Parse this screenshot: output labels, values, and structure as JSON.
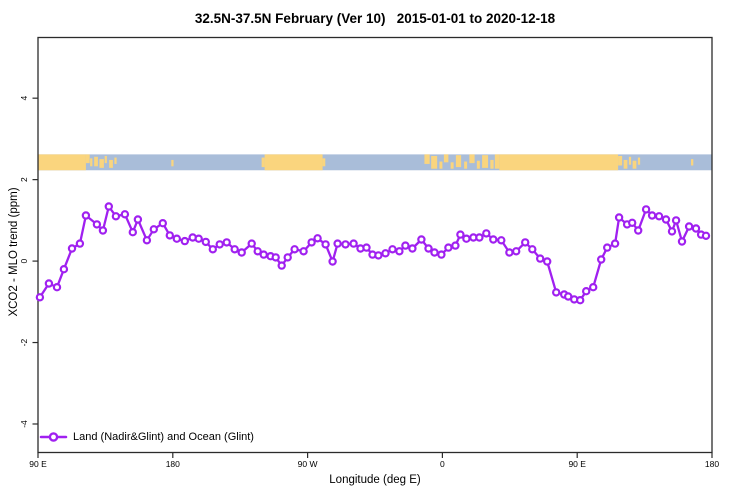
{
  "chart_data": {
    "type": "line",
    "title": "32.5N-37.5N February (Ver 10)   2015-01-01 to 2020-12-18",
    "xlabel": "Longitude (deg E)",
    "ylabel": "XCO2 - MLO trend (ppm)",
    "xlim": [
      90,
      540
    ],
    "ylim": [
      -4.7,
      5.49
    ],
    "grid": false,
    "x_ticks": {
      "values": [
        90,
        180,
        270,
        360,
        450,
        540
      ],
      "labels": [
        "90 E",
        "180",
        "90 W",
        "0",
        "90 E",
        "180"
      ]
    },
    "y_ticks": {
      "values": [
        -4,
        -2,
        0,
        2,
        4
      ],
      "labels": [
        "-4",
        "-2",
        "0",
        "2",
        "4"
      ]
    },
    "legend": {
      "position": "bottom-left",
      "entries": [
        {
          "label": "Land (Nadir&Glint) and Ocean (Glint)",
          "color": "#A020F0",
          "marker": "open-circle"
        }
      ]
    },
    "colors": {
      "series": "#A020F0",
      "marker_fill": "#FFFFFF",
      "land": "#FAD57E",
      "ocean": "#A9BDD9",
      "axis": "#000000"
    },
    "map_strip": {
      "note": "land/ocean band across plot centered near 2.4 ppm",
      "y_top_ppm": 2.62,
      "y_bottom_ppm": 2.23,
      "ocean_span": [
        90,
        540
      ],
      "land_segments": [
        [
          90,
          122
        ],
        [
          241.3,
          280
        ],
        [
          398,
          477.3
        ]
      ],
      "island_specks": [
        [
          122,
          124.5,
          0,
          0.55
        ],
        [
          124.8,
          126.3,
          0.25,
          0.5
        ],
        [
          127.5,
          130,
          0.15,
          0.6
        ],
        [
          131,
          134,
          0.3,
          0.55
        ],
        [
          134.5,
          136,
          0.1,
          0.45
        ],
        [
          137.5,
          140,
          0.35,
          0.5
        ],
        [
          141,
          142.5,
          0.2,
          0.4
        ],
        [
          179,
          180.5,
          0.35,
          0.4
        ],
        [
          239.3,
          241.3,
          0.2,
          0.6
        ],
        [
          280,
          281.8,
          0.25,
          0.5
        ],
        [
          348,
          351.5,
          0,
          0.6
        ],
        [
          352.5,
          356.5,
          0.1,
          0.8
        ],
        [
          358,
          360,
          0.45,
          0.45
        ],
        [
          361,
          364,
          0,
          0.5
        ],
        [
          365.5,
          367.5,
          0.5,
          0.4
        ],
        [
          369,
          372.5,
          0.05,
          0.75
        ],
        [
          374.5,
          376.5,
          0.45,
          0.45
        ],
        [
          378,
          381.5,
          0,
          0.55
        ],
        [
          383,
          385,
          0.4,
          0.5
        ],
        [
          386.5,
          390.5,
          0.05,
          0.8
        ],
        [
          392,
          394.2,
          0.35,
          0.55
        ],
        [
          395,
          398,
          0,
          0.9
        ],
        [
          477.3,
          480,
          0.1,
          0.6
        ],
        [
          481,
          483.5,
          0.35,
          0.55
        ],
        [
          484.5,
          486,
          0.15,
          0.5
        ],
        [
          487,
          489.5,
          0.4,
          0.5
        ],
        [
          490.5,
          492,
          0.2,
          0.45
        ],
        [
          526,
          527.5,
          0.3,
          0.4
        ]
      ]
    },
    "series": [
      {
        "name": "Land (Nadir&Glint) and Ocean (Glint)",
        "points": [
          [
            91.3,
            -0.89
          ],
          [
            97.3,
            -0.55
          ],
          [
            102.7,
            -0.64
          ],
          [
            107.3,
            -0.2
          ],
          [
            112.7,
            0.31
          ],
          [
            118,
            0.43
          ],
          [
            122,
            1.12
          ],
          [
            129.3,
            0.9
          ],
          [
            133.3,
            0.75
          ],
          [
            137.3,
            1.34
          ],
          [
            142,
            1.1
          ],
          [
            148,
            1.15
          ],
          [
            153.3,
            0.71
          ],
          [
            156.7,
            1.02
          ],
          [
            162.7,
            0.51
          ],
          [
            167.3,
            0.78
          ],
          [
            173.3,
            0.93
          ],
          [
            178,
            0.63
          ],
          [
            182.7,
            0.55
          ],
          [
            188,
            0.49
          ],
          [
            193.3,
            0.58
          ],
          [
            197.3,
            0.55
          ],
          [
            202,
            0.47
          ],
          [
            206.7,
            0.29
          ],
          [
            211.3,
            0.41
          ],
          [
            216,
            0.46
          ],
          [
            221.3,
            0.29
          ],
          [
            226,
            0.21
          ],
          [
            232.7,
            0.43
          ],
          [
            236.7,
            0.24
          ],
          [
            240.7,
            0.16
          ],
          [
            245.3,
            0.12
          ],
          [
            248.7,
            0.09
          ],
          [
            252.7,
            -0.11
          ],
          [
            256.7,
            0.09
          ],
          [
            261.3,
            0.29
          ],
          [
            267.3,
            0.24
          ],
          [
            272.7,
            0.46
          ],
          [
            276.7,
            0.56
          ],
          [
            282,
            0.41
          ],
          [
            286.7,
            -0.01
          ],
          [
            290,
            0.43
          ],
          [
            295.3,
            0.41
          ],
          [
            300.7,
            0.43
          ],
          [
            305.3,
            0.31
          ],
          [
            309.3,
            0.33
          ],
          [
            313.3,
            0.16
          ],
          [
            317.3,
            0.14
          ],
          [
            322,
            0.19
          ],
          [
            326.7,
            0.29
          ],
          [
            331.3,
            0.24
          ],
          [
            335.3,
            0.38
          ],
          [
            340,
            0.31
          ],
          [
            346,
            0.53
          ],
          [
            350.7,
            0.31
          ],
          [
            354.7,
            0.21
          ],
          [
            359.3,
            0.16
          ],
          [
            364,
            0.33
          ],
          [
            368.7,
            0.38
          ],
          [
            372,
            0.65
          ],
          [
            376,
            0.55
          ],
          [
            380.7,
            0.58
          ],
          [
            384.7,
            0.58
          ],
          [
            389.3,
            0.68
          ],
          [
            394,
            0.53
          ],
          [
            399.3,
            0.51
          ],
          [
            404.7,
            0.21
          ],
          [
            409.3,
            0.24
          ],
          [
            415.3,
            0.46
          ],
          [
            420,
            0.29
          ],
          [
            425.3,
            0.06
          ],
          [
            430,
            -0.01
          ],
          [
            436,
            -0.77
          ],
          [
            441.3,
            -0.82
          ],
          [
            444,
            -0.87
          ],
          [
            448,
            -0.94
          ],
          [
            452,
            -0.96
          ],
          [
            456,
            -0.74
          ],
          [
            460.7,
            -0.64
          ],
          [
            466,
            0.04
          ],
          [
            470,
            0.33
          ],
          [
            475.3,
            0.43
          ],
          [
            478,
            1.07
          ],
          [
            483.3,
            0.9
          ],
          [
            486.7,
            0.94
          ],
          [
            490.7,
            0.75
          ],
          [
            496,
            1.27
          ],
          [
            500,
            1.12
          ],
          [
            504.7,
            1.1
          ],
          [
            509.3,
            1.02
          ],
          [
            513.3,
            0.73
          ],
          [
            516,
            1.0
          ],
          [
            520,
            0.48
          ],
          [
            524.7,
            0.85
          ],
          [
            529.3,
            0.8
          ],
          [
            532.7,
            0.65
          ],
          [
            536,
            0.62
          ]
        ]
      }
    ]
  }
}
